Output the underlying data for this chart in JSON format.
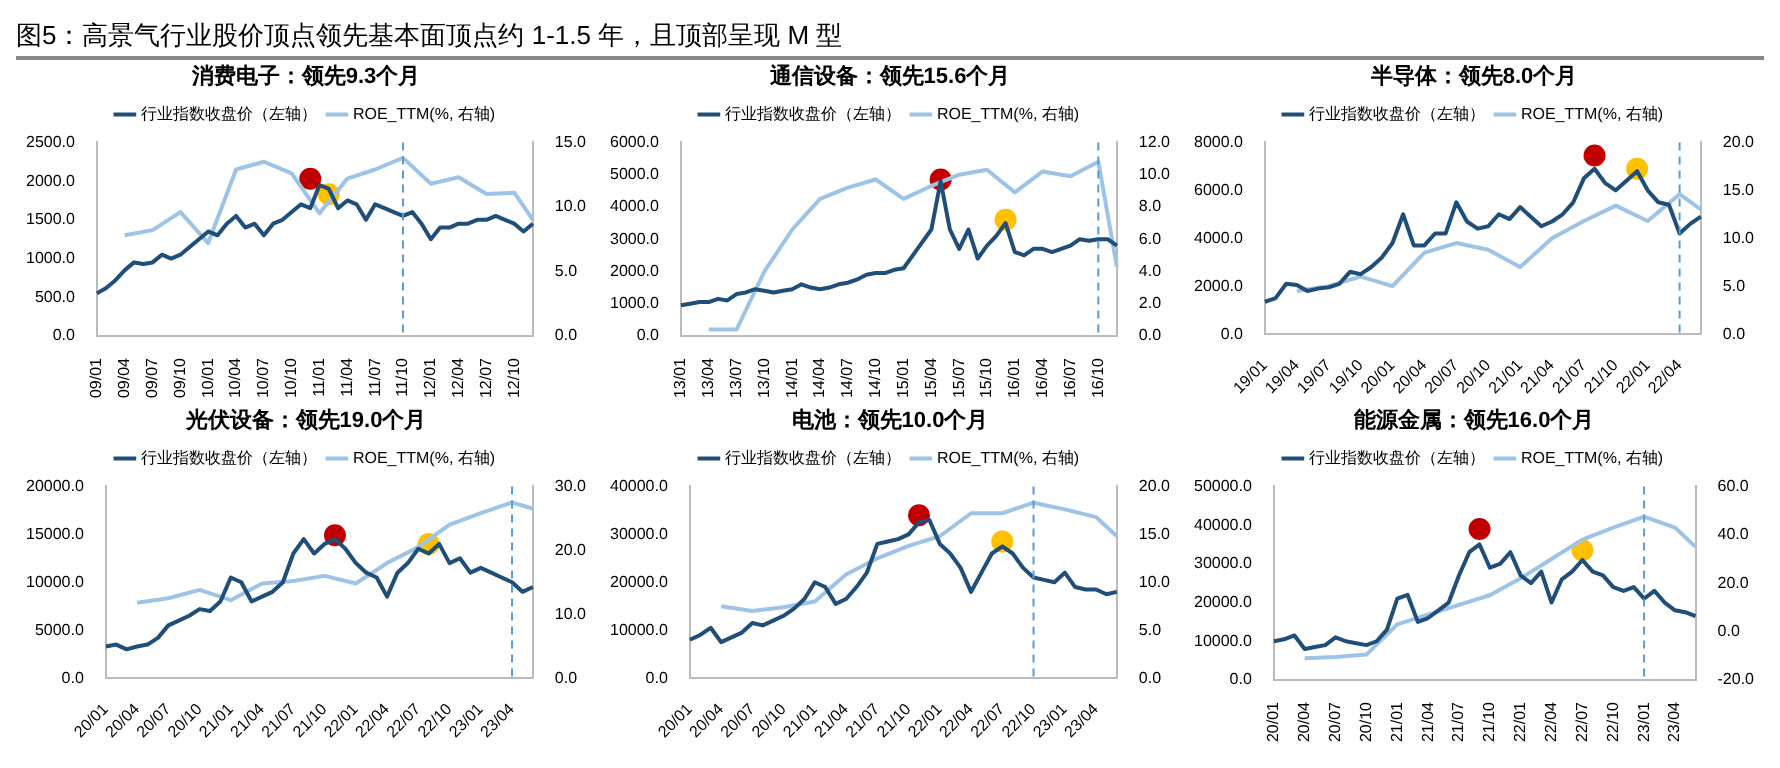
{
  "chart_data": [
    {
      "type": "line",
      "title": "消费电子：领先9.3个月",
      "annotations": [
        "图5：高景气行业股价顶点领先基本面顶点约 1-1.5 年，且顶部呈现 M 型"
      ],
      "legend": "top",
      "marker": "none",
      "categories": [
        "09/01",
        null,
        null,
        "09/04",
        null,
        null,
        "09/07",
        null,
        null,
        "09/10",
        null,
        null,
        "10/01",
        null,
        null,
        "10/04",
        null,
        null,
        "10/07",
        null,
        null,
        "10/10",
        null,
        null,
        "11/01",
        null,
        null,
        "11/04",
        null,
        null,
        "11/07",
        null,
        null,
        "11/10",
        null,
        null,
        "12/01",
        null,
        null,
        "12/04",
        null,
        null,
        "12/07",
        null,
        null,
        "12/10",
        null,
        null
      ],
      "ylim": [
        0,
        2500
      ],
      "yticks": [
        {
          "value": 0,
          "label": "0.0"
        },
        {
          "value": 500,
          "label": "500.0"
        },
        {
          "value": 1000,
          "label": "1000.0"
        },
        {
          "value": 1500,
          "label": "1500.0"
        },
        {
          "value": 2000,
          "label": "2000.0"
        },
        {
          "value": 2500,
          "label": "2500.0"
        }
      ],
      "y2lim": [
        0,
        15
      ],
      "y2ticks": [
        {
          "value": 0,
          "label": "0.0"
        },
        {
          "value": 5,
          "label": "5.0"
        },
        {
          "value": 10,
          "label": "10.0"
        },
        {
          "value": 15,
          "label": "15.0"
        }
      ],
      "ref_lines": [
        {
          "axis": "x",
          "value": "11/10",
          "color": "#5b9bd5",
          "line_style": "dashed"
        }
      ],
      "series": [
        {
          "name": "行业指数收盘价（左轴）",
          "color": "#1f4e79",
          "values": [
            550,
            620,
            720,
            850,
            950,
            930,
            950,
            1050,
            1000,
            1050,
            1150,
            1250,
            1350,
            1300,
            1450,
            1550,
            1400,
            1450,
            1300,
            1450,
            1500,
            1600,
            1700,
            1650,
            1950,
            1900,
            1650,
            1750,
            1700,
            1500,
            1700,
            1650,
            1600,
            1550,
            1600,
            1450,
            1250,
            1400,
            1400,
            1450,
            1450,
            1500,
            1500,
            1550,
            1500,
            1450,
            1350,
            1450
          ]
        },
        {
          "name": "ROE_TTM(%, 右轴)",
          "color": "#9dc3e6",
          "axis": "y2",
          "values": [
            null,
            null,
            null,
            7.8,
            null,
            null,
            8.2,
            null,
            null,
            9.6,
            null,
            null,
            7.2,
            null,
            null,
            12.9,
            null,
            null,
            13.5,
            null,
            null,
            12.6,
            null,
            null,
            9.5,
            null,
            null,
            12.2,
            null,
            null,
            12.9,
            null,
            null,
            13.8,
            null,
            null,
            11.8,
            null,
            null,
            12.3,
            null,
            null,
            11.0,
            null,
            null,
            11.1,
            null,
            9.0
          ]
        },
        {
          "type": "scatter",
          "marker": "circle",
          "color": "#c00000",
          "values": [
            null,
            null,
            null,
            null,
            null,
            null,
            null,
            null,
            null,
            null,
            null,
            null,
            null,
            null,
            null,
            null,
            null,
            null,
            null,
            null,
            null,
            null,
            null,
            2030,
            null,
            null,
            null,
            null,
            null,
            null,
            null,
            null,
            null,
            null,
            null,
            null,
            null,
            null,
            null,
            null,
            null,
            null,
            null,
            null,
            null,
            null,
            null,
            null
          ]
        },
        {
          "type": "scatter",
          "marker": "circle",
          "color": "#ffc000",
          "values": [
            null,
            null,
            null,
            null,
            null,
            null,
            null,
            null,
            null,
            null,
            null,
            null,
            null,
            null,
            null,
            null,
            null,
            null,
            null,
            null,
            null,
            null,
            null,
            null,
            null,
            1830,
            null,
            null,
            null,
            null,
            null,
            null,
            null,
            null,
            null,
            null,
            null,
            null,
            null,
            null,
            null,
            null,
            null,
            null,
            null,
            null,
            null,
            null
          ]
        }
      ]
    },
    {
      "type": "line",
      "title": "通信设备：领先15.6个月",
      "legend": "top",
      "marker": "none",
      "categories": [
        "13/01",
        null,
        null,
        "13/04",
        null,
        null,
        "13/07",
        null,
        null,
        "13/10",
        null,
        null,
        "14/01",
        null,
        null,
        "14/04",
        null,
        null,
        "14/07",
        null,
        null,
        "14/10",
        null,
        null,
        "15/01",
        null,
        null,
        "15/04",
        null,
        null,
        "15/07",
        null,
        null,
        "15/10",
        null,
        null,
        "16/01",
        null,
        null,
        "16/04",
        null,
        null,
        "16/07",
        null,
        null,
        "16/10",
        null,
        null
      ],
      "ylim": [
        0,
        6000
      ],
      "yticks": [
        {
          "value": 0,
          "label": "0.0"
        },
        {
          "value": 1000,
          "label": "1000.0"
        },
        {
          "value": 2000,
          "label": "2000.0"
        },
        {
          "value": 3000,
          "label": "3000.0"
        },
        {
          "value": 4000,
          "label": "4000.0"
        },
        {
          "value": 5000,
          "label": "5000.0"
        },
        {
          "value": 6000,
          "label": "6000.0"
        }
      ],
      "y2lim": [
        0,
        12
      ],
      "y2ticks": [
        {
          "value": 0,
          "label": "0.0"
        },
        {
          "value": 2,
          "label": "2.0"
        },
        {
          "value": 4,
          "label": "4.0"
        },
        {
          "value": 6,
          "label": "6.0"
        },
        {
          "value": 8,
          "label": "8.0"
        },
        {
          "value": 10,
          "label": "10.0"
        },
        {
          "value": 12,
          "label": "12.0"
        }
      ],
      "ref_lines": [
        {
          "axis": "x",
          "value": "16/10",
          "color": "#5b9bd5",
          "line_style": "dashed"
        }
      ],
      "series": [
        {
          "name": "行业指数收盘价（左轴）",
          "color": "#1f4e79",
          "values": [
            950,
            1000,
            1050,
            1050,
            1150,
            1100,
            1300,
            1350,
            1450,
            1400,
            1350,
            1400,
            1450,
            1600,
            1500,
            1450,
            1500,
            1600,
            1650,
            1750,
            1900,
            1950,
            1950,
            2050,
            2100,
            2500,
            2900,
            3300,
            4800,
            3300,
            2700,
            3300,
            2400,
            2800,
            3100,
            3500,
            2600,
            2500,
            2700,
            2700,
            2600,
            2700,
            2800,
            3000,
            2950,
            3000,
            3000,
            2800
          ]
        },
        {
          "name": "ROE_TTM(%, 右轴)",
          "color": "#9dc3e6",
          "axis": "y2",
          "values": [
            null,
            null,
            null,
            0.4,
            null,
            null,
            0.4,
            null,
            null,
            4.0,
            null,
            null,
            6.6,
            null,
            null,
            8.5,
            null,
            null,
            9.2,
            null,
            null,
            9.7,
            null,
            null,
            8.5,
            null,
            null,
            9.3,
            null,
            null,
            10.0,
            null,
            null,
            10.3,
            null,
            null,
            8.9,
            null,
            null,
            10.2,
            null,
            null,
            9.9,
            null,
            null,
            10.8,
            null,
            4.3
          ]
        },
        {
          "type": "scatter",
          "marker": "circle",
          "color": "#c00000",
          "values": [
            null,
            null,
            null,
            null,
            null,
            null,
            null,
            null,
            null,
            null,
            null,
            null,
            null,
            null,
            null,
            null,
            null,
            null,
            null,
            null,
            null,
            null,
            null,
            null,
            null,
            null,
            null,
            null,
            4850,
            null,
            null,
            null,
            null,
            null,
            null,
            null,
            null,
            null,
            null,
            null,
            null,
            null,
            null,
            null,
            null,
            null,
            null,
            null
          ]
        },
        {
          "type": "scatter",
          "marker": "circle",
          "color": "#ffc000",
          "values": [
            null,
            null,
            null,
            null,
            null,
            null,
            null,
            null,
            null,
            null,
            null,
            null,
            null,
            null,
            null,
            null,
            null,
            null,
            null,
            null,
            null,
            null,
            null,
            null,
            null,
            null,
            null,
            null,
            null,
            null,
            null,
            null,
            null,
            null,
            null,
            3600,
            null,
            null,
            null,
            null,
            null,
            null,
            null,
            null,
            null,
            null,
            null,
            null
          ]
        }
      ]
    },
    {
      "type": "line",
      "title": "半导体：领先8.0个月",
      "legend": "top",
      "marker": "none",
      "categories": [
        "19/01",
        null,
        null,
        "19/04",
        null,
        null,
        "19/07",
        null,
        null,
        "19/10",
        null,
        null,
        "20/01",
        null,
        null,
        "20/04",
        null,
        null,
        "20/07",
        null,
        null,
        "20/10",
        null,
        null,
        "21/01",
        null,
        null,
        "21/04",
        null,
        null,
        "21/07",
        null,
        null,
        "21/10",
        null,
        null,
        "22/01",
        null,
        null,
        "22/04",
        null,
        null
      ],
      "ylim": [
        0,
        8000
      ],
      "yticks": [
        {
          "value": 0,
          "label": "0.0"
        },
        {
          "value": 2000,
          "label": "2000.0"
        },
        {
          "value": 4000,
          "label": "4000.0"
        },
        {
          "value": 6000,
          "label": "6000.0"
        },
        {
          "value": 8000,
          "label": "8000.0"
        }
      ],
      "y2lim": [
        0,
        20
      ],
      "y2ticks": [
        {
          "value": 0,
          "label": "0.0"
        },
        {
          "value": 5,
          "label": "5.0"
        },
        {
          "value": 10,
          "label": "10.0"
        },
        {
          "value": 15,
          "label": "15.0"
        },
        {
          "value": 20,
          "label": "20.0"
        }
      ],
      "ref_lines": [
        {
          "axis": "x",
          "value": "22/04",
          "color": "#5b9bd5",
          "line_style": "dashed"
        }
      ],
      "series": [
        {
          "name": "行业指数收盘价（左轴）",
          "color": "#1f4e79",
          "values": [
            1350,
            1500,
            2100,
            2050,
            1800,
            1900,
            1950,
            2100,
            2600,
            2500,
            2800,
            3200,
            3800,
            5000,
            3700,
            3700,
            4200,
            4200,
            5500,
            4700,
            4400,
            4500,
            5000,
            4800,
            5300,
            4900,
            4500,
            4700,
            5000,
            5500,
            6500,
            6900,
            6300,
            6000,
            6400,
            6800,
            6000,
            5500,
            5400,
            4200,
            4600,
            4900
          ]
        },
        {
          "name": "ROE_TTM(%, 右轴)",
          "color": "#9dc3e6",
          "axis": "y2",
          "values": [
            null,
            null,
            null,
            4.5,
            null,
            null,
            5.0,
            null,
            null,
            6.0,
            null,
            null,
            5.0,
            null,
            null,
            8.5,
            null,
            null,
            9.5,
            null,
            null,
            8.8,
            null,
            null,
            7.0,
            null,
            null,
            10.0,
            null,
            null,
            11.8,
            null,
            null,
            13.4,
            null,
            null,
            11.8,
            null,
            null,
            14.6,
            null,
            13.0
          ]
        },
        {
          "type": "scatter",
          "marker": "circle",
          "color": "#c00000",
          "values": [
            null,
            null,
            null,
            null,
            null,
            null,
            null,
            null,
            null,
            null,
            null,
            null,
            null,
            null,
            null,
            null,
            null,
            null,
            null,
            null,
            null,
            null,
            null,
            null,
            null,
            null,
            null,
            null,
            null,
            null,
            null,
            7450,
            null,
            null,
            null,
            null,
            null,
            null,
            null,
            null,
            null,
            null
          ]
        },
        {
          "type": "scatter",
          "marker": "circle",
          "color": "#ffc000",
          "values": [
            null,
            null,
            null,
            null,
            null,
            null,
            null,
            null,
            null,
            null,
            null,
            null,
            null,
            null,
            null,
            null,
            null,
            null,
            null,
            null,
            null,
            null,
            null,
            null,
            null,
            null,
            null,
            null,
            null,
            null,
            null,
            null,
            null,
            null,
            null,
            6900,
            null,
            null,
            null,
            null,
            null,
            null
          ]
        }
      ]
    },
    {
      "type": "line",
      "title": "光伏设备：领先19.0个月",
      "legend": "top",
      "marker": "none",
      "categories": [
        "20/01",
        null,
        null,
        "20/04",
        null,
        null,
        "20/07",
        null,
        null,
        "20/10",
        null,
        null,
        "21/01",
        null,
        null,
        "21/04",
        null,
        null,
        "21/07",
        null,
        null,
        "21/10",
        null,
        null,
        "22/01",
        null,
        null,
        "22/04",
        null,
        null,
        "22/07",
        null,
        null,
        "22/10",
        null,
        null,
        "23/01",
        null,
        null,
        "23/04",
        null,
        null
      ],
      "ylim": [
        0,
        20000
      ],
      "yticks": [
        {
          "value": 0,
          "label": "0.0"
        },
        {
          "value": 5000,
          "label": "5000.0"
        },
        {
          "value": 10000,
          "label": "10000.0"
        },
        {
          "value": 15000,
          "label": "15000.0"
        },
        {
          "value": 20000,
          "label": "20000.0"
        }
      ],
      "y2lim": [
        0,
        30
      ],
      "y2ticks": [
        {
          "value": 0,
          "label": "0.0"
        },
        {
          "value": 10,
          "label": "10.0"
        },
        {
          "value": 20,
          "label": "20.0"
        },
        {
          "value": 30,
          "label": "30.0"
        }
      ],
      "ref_lines": [
        {
          "axis": "x",
          "value": "23/04",
          "color": "#5b9bd5",
          "line_style": "dashed"
        }
      ],
      "series": [
        {
          "name": "行业指数收盘价（左轴）",
          "color": "#1f4e79",
          "values": [
            3300,
            3500,
            3000,
            3300,
            3500,
            4200,
            5500,
            6000,
            6500,
            7200,
            7000,
            8000,
            10500,
            10000,
            8000,
            8500,
            9000,
            10000,
            13000,
            14500,
            13000,
            14000,
            14500,
            13500,
            12000,
            11000,
            10500,
            8500,
            11000,
            12000,
            13500,
            13000,
            14000,
            12000,
            12500,
            11000,
            11500,
            11000,
            10500,
            10000,
            9000,
            9500
          ]
        },
        {
          "name": "ROE_TTM(%, 右轴)",
          "color": "#9dc3e6",
          "axis": "y2",
          "values": [
            null,
            null,
            null,
            11.8,
            null,
            null,
            12.5,
            null,
            null,
            13.8,
            null,
            null,
            12.2,
            null,
            null,
            14.8,
            null,
            null,
            15.2,
            null,
            null,
            16.0,
            null,
            null,
            14.8,
            null,
            null,
            18.0,
            null,
            null,
            20.5,
            null,
            null,
            24.0,
            null,
            null,
            25.8,
            null,
            null,
            27.5,
            null,
            26.5
          ]
        },
        {
          "type": "scatter",
          "marker": "circle",
          "color": "#c00000",
          "values": [
            null,
            null,
            null,
            null,
            null,
            null,
            null,
            null,
            null,
            null,
            null,
            null,
            null,
            null,
            null,
            null,
            null,
            null,
            null,
            null,
            null,
            null,
            14900,
            null,
            null,
            null,
            null,
            null,
            null,
            null,
            null,
            null,
            null,
            null,
            null,
            null,
            null,
            null,
            null,
            null,
            null,
            null
          ]
        },
        {
          "type": "scatter",
          "marker": "circle",
          "color": "#ffc000",
          "values": [
            null,
            null,
            null,
            null,
            null,
            null,
            null,
            null,
            null,
            null,
            null,
            null,
            null,
            null,
            null,
            null,
            null,
            null,
            null,
            null,
            null,
            null,
            null,
            null,
            null,
            null,
            null,
            null,
            null,
            null,
            null,
            14000,
            null,
            null,
            null,
            null,
            null,
            null,
            null,
            null,
            null,
            null
          ]
        }
      ]
    },
    {
      "type": "line",
      "title": "电池：领先10.0个月",
      "legend": "top",
      "marker": "none",
      "categories": [
        "20/01",
        null,
        null,
        "20/04",
        null,
        null,
        "20/07",
        null,
        null,
        "20/10",
        null,
        null,
        "21/01",
        null,
        null,
        "21/04",
        null,
        null,
        "21/07",
        null,
        null,
        "21/10",
        null,
        null,
        "22/01",
        null,
        null,
        "22/04",
        null,
        null,
        "22/07",
        null,
        null,
        "22/10",
        null,
        null,
        "23/01",
        null,
        null,
        "23/04",
        null,
        null
      ],
      "ylim": [
        0,
        40000
      ],
      "yticks": [
        {
          "value": 0,
          "label": "0.0"
        },
        {
          "value": 10000,
          "label": "10000.0"
        },
        {
          "value": 20000,
          "label": "20000.0"
        },
        {
          "value": 30000,
          "label": "30000.0"
        },
        {
          "value": 40000,
          "label": "40000.0"
        }
      ],
      "y2lim": [
        0,
        20
      ],
      "y2ticks": [
        {
          "value": 0,
          "label": "0.0"
        },
        {
          "value": 5,
          "label": "5.0"
        },
        {
          "value": 10,
          "label": "10.0"
        },
        {
          "value": 15,
          "label": "15.0"
        },
        {
          "value": 20,
          "label": "20.0"
        }
      ],
      "ref_lines": [
        {
          "axis": "x",
          "value": "22/10",
          "color": "#5b9bd5",
          "line_style": "dashed"
        }
      ],
      "series": [
        {
          "name": "行业指数收盘价（左轴）",
          "color": "#1f4e79",
          "values": [
            8000,
            9000,
            10500,
            7500,
            8500,
            9500,
            11500,
            11000,
            12000,
            13000,
            14500,
            16500,
            20000,
            19000,
            15500,
            16500,
            19000,
            22000,
            28000,
            28500,
            29000,
            30000,
            32500,
            33000,
            28000,
            26000,
            23000,
            18000,
            22000,
            26000,
            27500,
            26000,
            23000,
            21000,
            20500,
            20000,
            22000,
            19000,
            18500,
            18500,
            17500,
            18000
          ]
        },
        {
          "name": "ROE_TTM(%, 右轴)",
          "color": "#9dc3e6",
          "axis": "y2",
          "values": [
            null,
            null,
            null,
            7.5,
            null,
            null,
            7.0,
            null,
            null,
            7.4,
            null,
            null,
            8.0,
            null,
            null,
            10.8,
            null,
            null,
            12.5,
            null,
            null,
            13.8,
            null,
            null,
            14.8,
            null,
            null,
            17.2,
            null,
            null,
            17.2,
            null,
            null,
            18.3,
            null,
            null,
            17.6,
            null,
            null,
            16.8,
            null,
            14.8
          ]
        },
        {
          "type": "scatter",
          "marker": "circle",
          "color": "#c00000",
          "values": [
            null,
            null,
            null,
            null,
            null,
            null,
            null,
            null,
            null,
            null,
            null,
            null,
            null,
            null,
            null,
            null,
            null,
            null,
            null,
            null,
            null,
            null,
            34000,
            null,
            null,
            null,
            null,
            null,
            null,
            null,
            null,
            null,
            null,
            null,
            null,
            null,
            null,
            null,
            null,
            null,
            null,
            null
          ]
        },
        {
          "type": "scatter",
          "marker": "circle",
          "color": "#ffc000",
          "values": [
            null,
            null,
            null,
            null,
            null,
            null,
            null,
            null,
            null,
            null,
            null,
            null,
            null,
            null,
            null,
            null,
            null,
            null,
            null,
            null,
            null,
            null,
            null,
            null,
            null,
            null,
            null,
            null,
            null,
            null,
            28500,
            null,
            null,
            null,
            null,
            null,
            null,
            null,
            null,
            null,
            null,
            null
          ]
        }
      ]
    },
    {
      "type": "line",
      "title": "能源金属：领先16.0个月",
      "legend": "top",
      "marker": "none",
      "categories": [
        "20/01",
        null,
        null,
        "20/04",
        null,
        null,
        "20/07",
        null,
        null,
        "20/10",
        null,
        null,
        "21/01",
        null,
        null,
        "21/04",
        null,
        null,
        "21/07",
        null,
        null,
        "21/10",
        null,
        null,
        "22/01",
        null,
        null,
        "22/04",
        null,
        null,
        "22/07",
        null,
        null,
        "22/10",
        null,
        null,
        "23/01",
        null,
        null,
        "23/04",
        null,
        null
      ],
      "ylim": [
        0,
        50000
      ],
      "yticks": [
        {
          "value": 0,
          "label": "0.0"
        },
        {
          "value": 10000,
          "label": "10000.0"
        },
        {
          "value": 20000,
          "label": "20000.0"
        },
        {
          "value": 30000,
          "label": "30000.0"
        },
        {
          "value": 40000,
          "label": "40000.0"
        },
        {
          "value": 50000,
          "label": "50000.0"
        }
      ],
      "y2lim": [
        -20,
        60
      ],
      "y2ticks": [
        {
          "value": -20,
          "label": "-20.0"
        },
        {
          "value": 0,
          "label": "0.0"
        },
        {
          "value": 20,
          "label": "20.0"
        },
        {
          "value": 40,
          "label": "40.0"
        },
        {
          "value": 60,
          "label": "60.0"
        }
      ],
      "ref_lines": [
        {
          "axis": "x",
          "value": "23/01",
          "color": "#5b9bd5",
          "line_style": "dashed"
        }
      ],
      "series": [
        {
          "name": "行业指数收盘价（左轴）",
          "color": "#1f4e79",
          "values": [
            10000,
            10500,
            11500,
            8000,
            8500,
            9000,
            11000,
            10000,
            9500,
            9000,
            10000,
            13000,
            21000,
            22000,
            15000,
            16000,
            18000,
            20000,
            27000,
            33000,
            35000,
            29000,
            30000,
            33000,
            27000,
            25000,
            28000,
            20000,
            26000,
            28000,
            31000,
            28000,
            27000,
            24000,
            23000,
            24000,
            21000,
            23000,
            20000,
            18000,
            17500,
            16500
          ]
        },
        {
          "name": "ROE_TTM(%, 右轴)",
          "color": "#9dc3e6",
          "axis": "y2",
          "values": [
            null,
            null,
            null,
            -11,
            null,
            null,
            -10.5,
            null,
            null,
            -9.5,
            null,
            null,
            3,
            null,
            null,
            7,
            null,
            null,
            11,
            null,
            null,
            15,
            null,
            null,
            22,
            null,
            null,
            30,
            null,
            null,
            38,
            null,
            null,
            43,
            null,
            null,
            47.5,
            null,
            null,
            43,
            null,
            35
          ]
        },
        {
          "type": "scatter",
          "marker": "circle",
          "color": "#c00000",
          "values": [
            null,
            null,
            null,
            null,
            null,
            null,
            null,
            null,
            null,
            null,
            null,
            null,
            null,
            null,
            null,
            null,
            null,
            null,
            null,
            null,
            39000,
            null,
            null,
            null,
            null,
            null,
            null,
            null,
            null,
            null,
            null,
            null,
            null,
            null,
            null,
            null,
            null,
            null,
            null,
            null,
            null,
            null
          ]
        },
        {
          "type": "scatter",
          "marker": "circle",
          "color": "#ffc000",
          "values": [
            null,
            null,
            null,
            null,
            null,
            null,
            null,
            null,
            null,
            null,
            null,
            null,
            null,
            null,
            null,
            null,
            null,
            null,
            null,
            null,
            null,
            null,
            null,
            null,
            null,
            null,
            null,
            null,
            null,
            null,
            33500,
            null,
            null,
            null,
            null,
            null,
            null,
            null,
            null,
            null,
            null,
            null
          ]
        }
      ]
    }
  ]
}
